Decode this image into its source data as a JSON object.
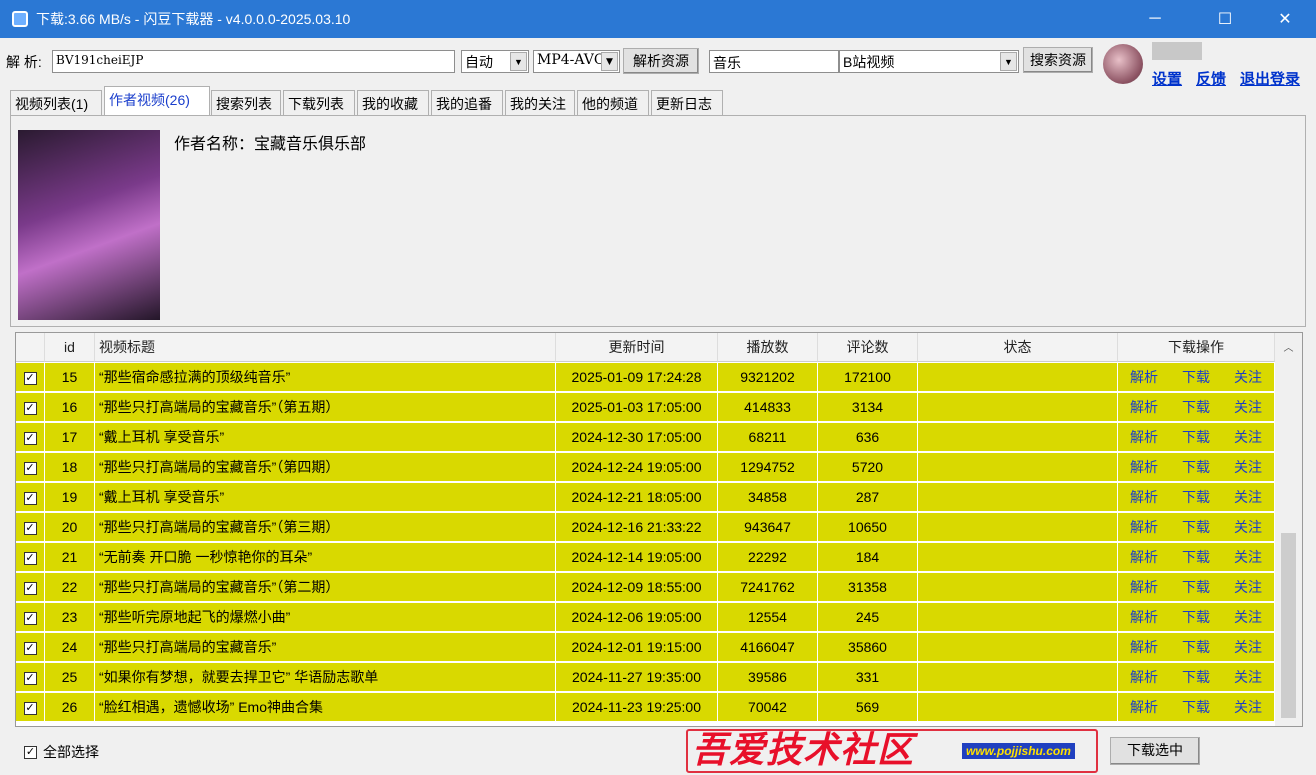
{
  "window": {
    "title": "下载:3.66 MB/s - 闪豆下载器 - v4.0.0.0-2025.03.10",
    "minimize": "─",
    "maximize": "☐",
    "close": "✕"
  },
  "toolbar": {
    "parse_label": "解 析:",
    "url_value": "BV191cheiEJP",
    "quality": "自动",
    "format": "MP4-AVC",
    "parse_button": "解析资源",
    "search_value": "音乐",
    "search_source": "B站视频",
    "search_button": "搜索资源",
    "settings": "设置",
    "feedback": "反馈",
    "logout": "退出登录"
  },
  "tabs": [
    {
      "label": "视频列表(1)"
    },
    {
      "label": "作者视频(26)",
      "active": true
    },
    {
      "label": "搜索列表"
    },
    {
      "label": "下载列表"
    },
    {
      "label": "我的收藏"
    },
    {
      "label": "我的追番"
    },
    {
      "label": "我的关注"
    },
    {
      "label": "他的频道"
    },
    {
      "label": "更新日志"
    }
  ],
  "author": {
    "name_label": "作者名称：宝藏音乐俱乐部"
  },
  "table": {
    "headers": [
      "",
      "id",
      "视频标题",
      "更新时间",
      "播放数",
      "评论数",
      "状态",
      "下载操作"
    ],
    "actions": [
      "解析",
      "下载",
      "关注"
    ],
    "row_color": "#d9d900",
    "rows": [
      {
        "checked": true,
        "id": "15",
        "title": "“那些宿命感拉满的顶级纯音乐”",
        "time": "2025-01-09 17:24:28",
        "plays": "9321202",
        "comments": "172100",
        "status": ""
      },
      {
        "checked": true,
        "id": "16",
        "title": "“那些只打高端局的宝藏音乐”（第五期）",
        "time": "2025-01-03 17:05:00",
        "plays": "414833",
        "comments": "3134",
        "status": ""
      },
      {
        "checked": true,
        "id": "17",
        "title": "“戴上耳机 享受音乐”",
        "time": "2024-12-30 17:05:00",
        "plays": "68211",
        "comments": "636",
        "status": ""
      },
      {
        "checked": true,
        "id": "18",
        "title": "“那些只打高端局的宝藏音乐”（第四期）",
        "time": "2024-12-24 19:05:00",
        "plays": "1294752",
        "comments": "5720",
        "status": ""
      },
      {
        "checked": true,
        "id": "19",
        "title": "“戴上耳机 享受音乐”",
        "time": "2024-12-21 18:05:00",
        "plays": "34858",
        "comments": "287",
        "status": ""
      },
      {
        "checked": true,
        "id": "20",
        "title": "“那些只打高端局的宝藏音乐”（第三期）",
        "time": "2024-12-16 21:33:22",
        "plays": "943647",
        "comments": "10650",
        "status": ""
      },
      {
        "checked": true,
        "id": "21",
        "title": "“无前奏 开口脆 一秒惊艳你的耳朵”",
        "time": "2024-12-14 19:05:00",
        "plays": "22292",
        "comments": "184",
        "status": ""
      },
      {
        "checked": true,
        "id": "22",
        "title": "“那些只打高端局的宝藏音乐”（第二期）",
        "time": "2024-12-09 18:55:00",
        "plays": "7241762",
        "comments": "31358",
        "status": ""
      },
      {
        "checked": true,
        "id": "23",
        "title": "“那些听完原地起飞的爆燃小曲”",
        "time": "2024-12-06 19:05:00",
        "plays": "12554",
        "comments": "245",
        "status": ""
      },
      {
        "checked": true,
        "id": "24",
        "title": "“那些只打高端局的宝藏音乐”",
        "time": "2024-12-01 19:15:00",
        "plays": "4166047",
        "comments": "35860",
        "status": ""
      },
      {
        "checked": true,
        "id": "25",
        "title": "“如果你有梦想，就要去捍卫它” 华语励志歌单",
        "time": "2024-11-27 19:35:00",
        "plays": "39586",
        "comments": "331",
        "status": ""
      },
      {
        "checked": true,
        "id": "26",
        "title": "“脸红相遇，遗憾收场” Emo神曲合集",
        "time": "2024-11-23 19:25:00",
        "plays": "70042",
        "comments": "569",
        "status": ""
      }
    ]
  },
  "footer": {
    "select_all": "全部选择",
    "download_selected": "下载选中"
  },
  "watermark": {
    "text": "吾爱技术社区",
    "url": "www.pojjishu.com"
  }
}
